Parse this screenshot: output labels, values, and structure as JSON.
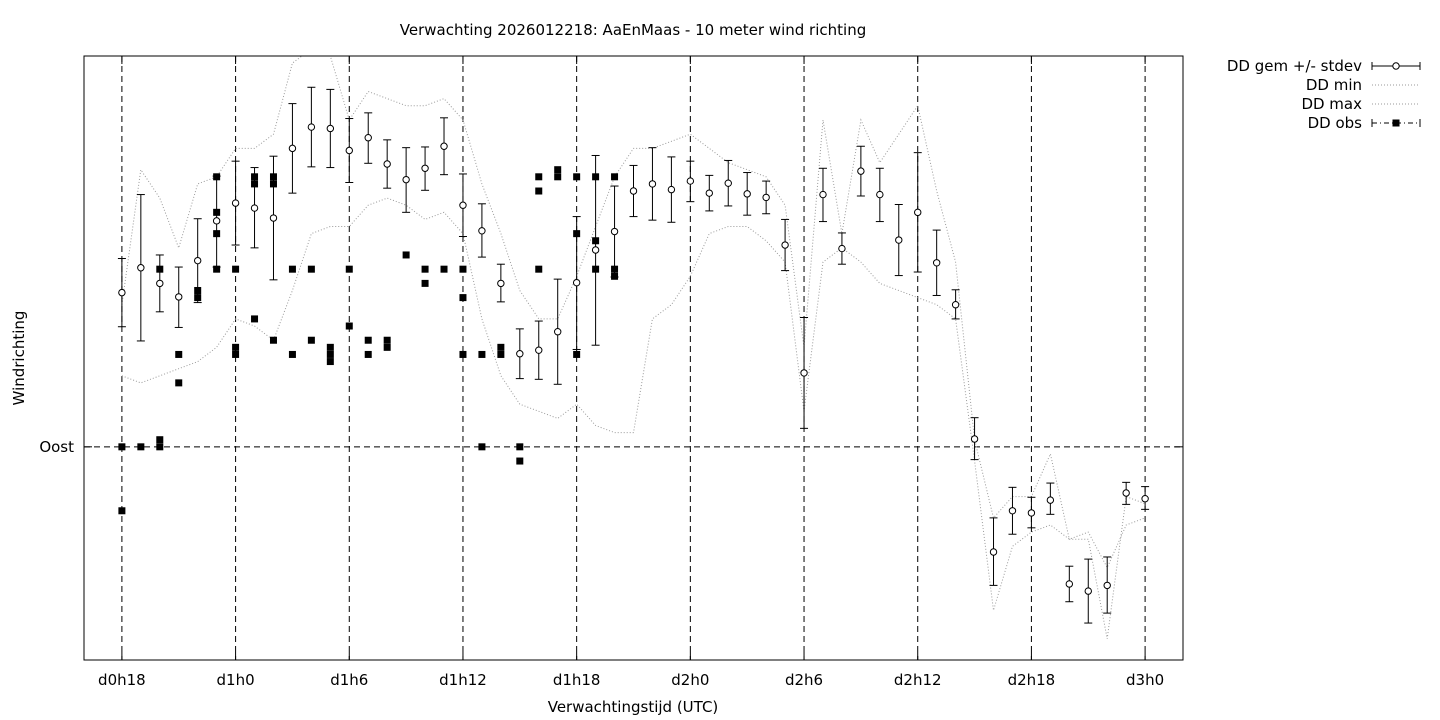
{
  "chart_data": {
    "type": "scatter",
    "title": "Verwachting 2026012218: AaEnMaas - 10 meter wind richting",
    "xlabel": "Verwachtingstijd (UTC)",
    "ylabel": "Windrichting",
    "x_ticks": [
      {
        "label": "d0h18",
        "h": 0
      },
      {
        "label": "d1h0",
        "h": 6
      },
      {
        "label": "d1h6",
        "h": 12
      },
      {
        "label": "d1h12",
        "h": 18
      },
      {
        "label": "d1h18",
        "h": 24
      },
      {
        "label": "d2h0",
        "h": 30
      },
      {
        "label": "d2h6",
        "h": 36
      },
      {
        "label": "d2h12",
        "h": 42
      },
      {
        "label": "d2h18",
        "h": 48
      },
      {
        "label": "d3h0",
        "h": 54
      }
    ],
    "x_range": [
      -2,
      56
    ],
    "y_range": [
      -30,
      55
    ],
    "y_ticks": [
      {
        "label": "Oost",
        "value": 0
      }
    ],
    "grid": true,
    "legend_position": "top-right-outside",
    "legend": [
      {
        "label": "DD gem +/- stdev"
      },
      {
        "label": "DD min"
      },
      {
        "label": "DD max"
      },
      {
        "label": "DD obs"
      }
    ],
    "mean": {
      "x": [
        0,
        1,
        2,
        3,
        4,
        5,
        6,
        7,
        8,
        9,
        10,
        11,
        12,
        13,
        14,
        15,
        16,
        17,
        18,
        19,
        20,
        21,
        22,
        23,
        24,
        25,
        26,
        27,
        28,
        29,
        30,
        31,
        32,
        33,
        34,
        35,
        36,
        37,
        38,
        39,
        40,
        41,
        42,
        43,
        44,
        45,
        46,
        47,
        48,
        49,
        50,
        51,
        52,
        53,
        54
      ],
      "mean": [
        21.7,
        25.2,
        23.0,
        21.1,
        26.2,
        31.8,
        34.3,
        33.6,
        32.2,
        42.0,
        45.0,
        44.8,
        41.7,
        43.5,
        39.8,
        37.6,
        39.2,
        42.3,
        34.0,
        30.4,
        23.0,
        13.1,
        13.6,
        16.2,
        23.1,
        27.7,
        30.3,
        36.0,
        37.0,
        36.2,
        37.4,
        35.7,
        37.1,
        35.6,
        35.1,
        28.4,
        10.4,
        35.5,
        27.9,
        38.8,
        35.5,
        29.1,
        33.0,
        25.9,
        20.0,
        1.1,
        -14.8,
        -9.0,
        -9.3,
        -7.5,
        -19.3,
        -20.3,
        -19.5,
        -6.5,
        -7.3
      ],
      "lower": [
        16.9,
        14.9,
        19.0,
        16.8,
        20.3,
        25.3,
        28.4,
        28.0,
        23.5,
        35.7,
        39.4,
        39.3,
        37.2,
        39.9,
        36.4,
        33.0,
        36.1,
        38.3,
        29.6,
        26.7,
        20.4,
        9.6,
        9.5,
        8.8,
        13.7,
        14.3,
        23.9,
        32.4,
        31.9,
        31.6,
        34.5,
        33.2,
        33.9,
        32.6,
        32.8,
        24.8,
        2.6,
        31.7,
        25.7,
        35.3,
        31.7,
        24.1,
        24.6,
        21.3,
        18.0,
        -1.8,
        -19.5,
        -12.3,
        -11.4,
        -9.5,
        -21.8,
        -24.8,
        -23.4,
        -8.1,
        -8.8
      ],
      "upper": [
        26.5,
        35.5,
        27.0,
        25.3,
        32.1,
        38.1,
        40.2,
        39.3,
        40.9,
        48.3,
        50.6,
        50.3,
        46.2,
        47.0,
        43.2,
        42.1,
        42.2,
        46.3,
        38.4,
        34.2,
        25.7,
        16.6,
        17.7,
        23.6,
        32.4,
        41.0,
        36.7,
        39.6,
        42.1,
        40.8,
        40.2,
        38.2,
        40.3,
        38.6,
        37.4,
        32.0,
        18.2,
        39.2,
        30.1,
        42.3,
        39.2,
        34.1,
        41.4,
        30.5,
        22.1,
        4.1,
        -10.0,
        -5.7,
        -7.1,
        -5.1,
        -16.8,
        -15.8,
        -15.5,
        -5.0,
        -5.6
      ]
    },
    "min_line": {
      "x": [
        0,
        1,
        2,
        3,
        4,
        5,
        6,
        7,
        8,
        9,
        10,
        11,
        12,
        13,
        14,
        15,
        16,
        17,
        18,
        19,
        20,
        21,
        22,
        23,
        24,
        25,
        26,
        27,
        28,
        29,
        30,
        31,
        32,
        33,
        34,
        35,
        36,
        37,
        38,
        39,
        40,
        41,
        42,
        43,
        44,
        45,
        46,
        47,
        48,
        49,
        50,
        51,
        52,
        53,
        54
      ],
      "y": [
        10.0,
        9.0,
        10.0,
        11.0,
        12.0,
        14.0,
        18.0,
        17.0,
        15.0,
        22.0,
        30.0,
        31.0,
        31.0,
        34.0,
        35.0,
        34.0,
        32.0,
        33.0,
        30.0,
        18.0,
        10.0,
        6.0,
        5.0,
        4.0,
        6.0,
        3.0,
        2.0,
        2.0,
        18.0,
        20.0,
        24.0,
        30.0,
        31.0,
        31.0,
        29.0,
        26.0,
        5.0,
        26.0,
        28.0,
        26.0,
        23.0,
        22.0,
        21.0,
        20.0,
        18.0,
        -2.0,
        -23.0,
        -14.0,
        -12.0,
        -11.0,
        -13.0,
        -12.0,
        -17.0,
        -11.0,
        -10.0
      ]
    },
    "max_line": {
      "x": [
        0,
        1,
        2,
        3,
        4,
        5,
        6,
        7,
        8,
        9,
        10,
        11,
        12,
        13,
        14,
        15,
        16,
        17,
        18,
        19,
        20,
        21,
        22,
        23,
        24,
        25,
        26,
        27,
        28,
        29,
        30,
        31,
        32,
        33,
        34,
        35,
        36,
        37,
        38,
        39,
        40,
        41,
        42,
        43,
        44,
        45,
        46,
        47,
        48,
        49,
        50,
        51,
        52,
        53,
        54
      ],
      "y": [
        20.0,
        39.0,
        35.0,
        28.0,
        37.0,
        38.0,
        42.0,
        42.0,
        44.0,
        54.0,
        56.0,
        55.0,
        46.0,
        50.0,
        49.0,
        48.0,
        48.0,
        49.0,
        46.0,
        37.0,
        30.0,
        22.0,
        18.0,
        18.0,
        24.0,
        31.0,
        38.0,
        42.0,
        42.0,
        43.0,
        44.0,
        42.0,
        40.0,
        39.0,
        38.0,
        34.0,
        14.0,
        46.0,
        30.0,
        46.0,
        40.0,
        44.0,
        48.0,
        36.0,
        26.0,
        1.0,
        -10.0,
        -7.0,
        -7.0,
        -1.0,
        -13.0,
        -13.0,
        -27.0,
        -7.0,
        -8.0
      ]
    },
    "observations": {
      "x": [
        0,
        0,
        1,
        2,
        2,
        2,
        3,
        3,
        4,
        4,
        5,
        5,
        5,
        5,
        6,
        6,
        6,
        7,
        7,
        7,
        8,
        8,
        8,
        9,
        9,
        10,
        10,
        11,
        11,
        11,
        12,
        12,
        13,
        13,
        14,
        14,
        15,
        16,
        16,
        17,
        18,
        18,
        18,
        19,
        19,
        20,
        20,
        21,
        21,
        22,
        22,
        22,
        23,
        23,
        24,
        24,
        24,
        25,
        25,
        25,
        26,
        26,
        26
      ],
      "y": [
        0,
        -9,
        0,
        25,
        0,
        1,
        13,
        9,
        22,
        21,
        30,
        25,
        33,
        38,
        25,
        14,
        13,
        38,
        37,
        18,
        38,
        37,
        15,
        25,
        13,
        25,
        15,
        13,
        14,
        12,
        25,
        17,
        15,
        13,
        15,
        14,
        27,
        25,
        23,
        25,
        21,
        25,
        13,
        13,
        0,
        14,
        13,
        0,
        -2,
        25,
        38,
        36,
        38,
        39,
        13,
        30,
        38,
        25,
        29,
        38,
        25,
        24,
        38
      ]
    }
  }
}
